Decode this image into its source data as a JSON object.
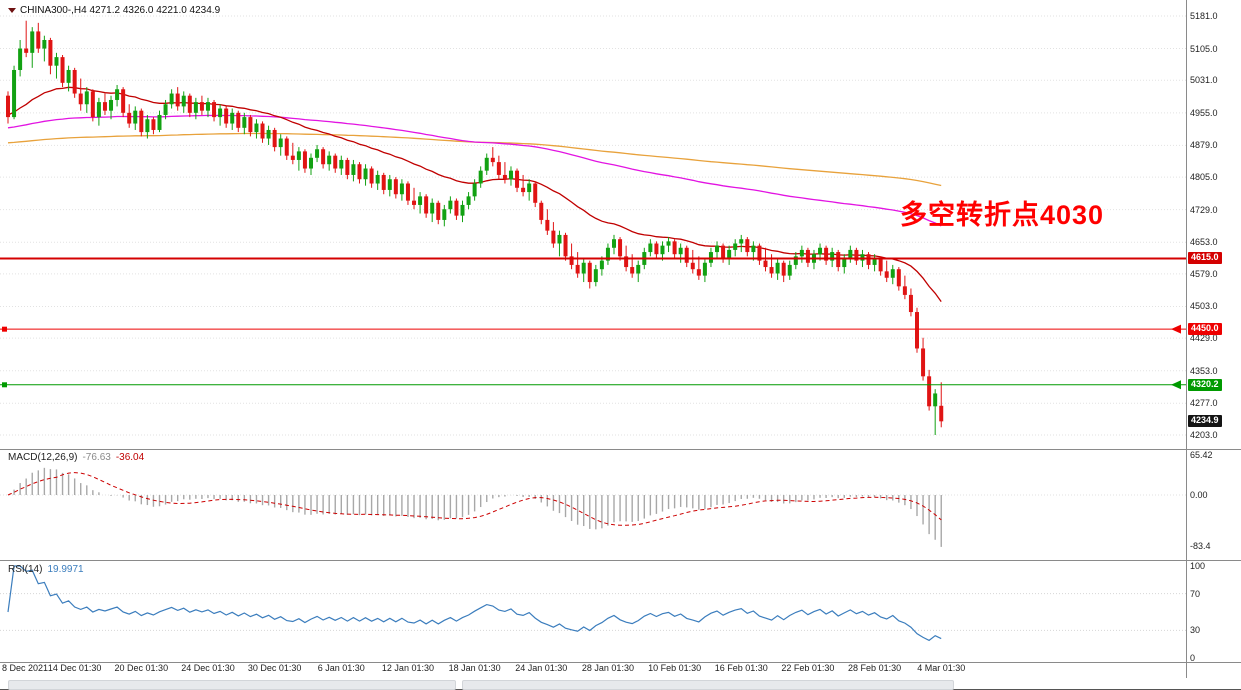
{
  "header": {
    "symbol_title": "CHINA300-,H4 4271.2 4326.0 4221.0 4234.9"
  },
  "annotation": {
    "text": "多空转折点4030",
    "color": "#ff0000"
  },
  "indicators": {
    "macd": {
      "label": "MACD(12,26,9)",
      "value_main": "-76.63",
      "value_signal": "-36.04",
      "axis_labels": [
        "65.42",
        "0.00",
        "-83.4"
      ],
      "axis_values": [
        65.42,
        0,
        -83.4
      ]
    },
    "rsi": {
      "label": "RSI(14)",
      "value": "19.9971",
      "axis_labels": [
        "100",
        "70",
        "30",
        "0"
      ],
      "axis_values": [
        100,
        70,
        30,
        0
      ]
    }
  },
  "price_axis": {
    "ticks": [
      5181.0,
      5105.0,
      5031.0,
      4955.0,
      4879.0,
      4805.0,
      4729.0,
      4653.0,
      4579.0,
      4503.0,
      4429.0,
      4353.0,
      4277.0,
      4203.0
    ],
    "tags": [
      {
        "label": "4615.0",
        "value": 4615.0,
        "bg": "#d40000"
      },
      {
        "label": "4450.0",
        "value": 4450.0,
        "bg": "#ee0000"
      },
      {
        "label": "4320.2",
        "value": 4320.2,
        "bg": "#009a00"
      },
      {
        "label": "4234.9",
        "value": 4234.9,
        "bg": "#141414"
      }
    ]
  },
  "levels": [
    {
      "value": 4615.0,
      "label": "4615.0",
      "color": "#d40000",
      "width": 2,
      "end_markers": false
    },
    {
      "value": 4450.0,
      "label": "4450.0",
      "color": "#ee0000",
      "width": 1,
      "end_markers": true
    },
    {
      "value": 4320.2,
      "label": "4320.2",
      "color": "#009a00",
      "width": 1,
      "end_markers": true
    }
  ],
  "time_axis": {
    "labels": [
      "8 Dec 2021",
      "14 Dec 01:30",
      "20 Dec 01:30",
      "24 Dec 01:30",
      "30 Dec 01:30",
      "6 Jan 01:30",
      "12 Jan 01:30",
      "18 Jan 01:30",
      "24 Jan 01:30",
      "28 Jan 01:30",
      "10 Feb 01:30",
      "16 Feb 01:30",
      "22 Feb 01:30",
      "28 Feb 01:30",
      "4 Mar 01:30"
    ],
    "candle_indices": [
      0,
      11,
      22,
      33,
      44,
      55,
      66,
      77,
      88,
      99,
      110,
      121,
      132,
      143,
      154
    ]
  },
  "colors": {
    "background": "#ffffff",
    "grid": "#e2e2e2",
    "candle_up": "#12a112",
    "candle_down": "#e01414",
    "macd_histogram": "#a8a8a8",
    "macd_signal": "#cc0000",
    "rsi_line": "#3b7dbd",
    "annotation": "#ff0000",
    "last_price_bg": "#141414"
  },
  "chart_data": {
    "type": "candlestick",
    "symbol": "CHINA300-",
    "timeframe": "H4",
    "title": "CHINA300-,H4",
    "last_ohlc": {
      "open": 4271.2,
      "high": 4326.0,
      "low": 4221.0,
      "close": 4234.9
    },
    "ylim": [
      4186,
      5210
    ],
    "moving_averages": [
      {
        "period": 340,
        "seed": 4885,
        "color": "#e8a23c",
        "name": "ma-slow-orange"
      },
      {
        "period": 140,
        "seed": 4920,
        "color": "#e214e2",
        "name": "ma-mid-magenta"
      },
      {
        "period": 30,
        "seed": 4950,
        "color": "#c00000",
        "name": "ma-fast-red"
      }
    ],
    "indicator_params": {
      "macd": {
        "fast": 12,
        "slow": 26,
        "signal": 9
      },
      "rsi": {
        "period": 14
      }
    },
    "ohlc": [
      [
        4995,
        5005,
        4930,
        4945
      ],
      [
        4945,
        5065,
        4940,
        5055
      ],
      [
        5055,
        5125,
        5040,
        5105
      ],
      [
        5105,
        5170,
        5085,
        5095
      ],
      [
        5095,
        5155,
        5060,
        5145
      ],
      [
        5145,
        5165,
        5095,
        5105
      ],
      [
        5105,
        5135,
        5075,
        5125
      ],
      [
        5125,
        5130,
        5045,
        5065
      ],
      [
        5065,
        5095,
        5035,
        5085
      ],
      [
        5085,
        5090,
        5015,
        5025
      ],
      [
        5025,
        5065,
        5005,
        5055
      ],
      [
        5055,
        5060,
        4990,
        5000
      ],
      [
        5000,
        5035,
        4960,
        4975
      ],
      [
        4975,
        5015,
        4955,
        5005
      ],
      [
        5005,
        5010,
        4935,
        4945
      ],
      [
        4945,
        4990,
        4925,
        4980
      ],
      [
        4980,
        5000,
        4950,
        4960
      ],
      [
        4960,
        4995,
        4940,
        4985
      ],
      [
        4985,
        5020,
        4970,
        5010
      ],
      [
        5010,
        5015,
        4945,
        4955
      ],
      [
        4955,
        4975,
        4920,
        4930
      ],
      [
        4930,
        4970,
        4915,
        4960
      ],
      [
        4960,
        4965,
        4900,
        4910
      ],
      [
        4910,
        4950,
        4895,
        4940
      ],
      [
        4940,
        4945,
        4905,
        4915
      ],
      [
        4915,
        4960,
        4910,
        4950
      ],
      [
        4950,
        4985,
        4940,
        4975
      ],
      [
        4975,
        5010,
        4965,
        5000
      ],
      [
        5000,
        5015,
        4960,
        4970
      ],
      [
        4970,
        5005,
        4955,
        4995
      ],
      [
        4995,
        5000,
        4945,
        4955
      ],
      [
        4955,
        4990,
        4940,
        4980
      ],
      [
        4980,
        4995,
        4950,
        4960
      ],
      [
        4960,
        4990,
        4945,
        4980
      ],
      [
        4980,
        4985,
        4935,
        4945
      ],
      [
        4945,
        4975,
        4925,
        4965
      ],
      [
        4965,
        4970,
        4920,
        4930
      ],
      [
        4930,
        4965,
        4915,
        4955
      ],
      [
        4955,
        4960,
        4910,
        4920
      ],
      [
        4920,
        4955,
        4905,
        4945
      ],
      [
        4945,
        4950,
        4900,
        4910
      ],
      [
        4910,
        4940,
        4895,
        4930
      ],
      [
        4930,
        4935,
        4885,
        4895
      ],
      [
        4895,
        4925,
        4880,
        4915
      ],
      [
        4915,
        4920,
        4865,
        4875
      ],
      [
        4875,
        4905,
        4855,
        4895
      ],
      [
        4895,
        4900,
        4845,
        4855
      ],
      [
        4855,
        4885,
        4835,
        4845
      ],
      [
        4845,
        4875,
        4820,
        4865
      ],
      [
        4865,
        4870,
        4815,
        4825
      ],
      [
        4825,
        4860,
        4810,
        4850
      ],
      [
        4850,
        4880,
        4840,
        4870
      ],
      [
        4870,
        4875,
        4825,
        4835
      ],
      [
        4835,
        4865,
        4820,
        4855
      ],
      [
        4855,
        4860,
        4815,
        4825
      ],
      [
        4825,
        4855,
        4810,
        4845
      ],
      [
        4845,
        4850,
        4800,
        4810
      ],
      [
        4810,
        4845,
        4795,
        4835
      ],
      [
        4835,
        4840,
        4790,
        4800
      ],
      [
        4800,
        4835,
        4785,
        4825
      ],
      [
        4825,
        4830,
        4780,
        4790
      ],
      [
        4790,
        4820,
        4775,
        4810
      ],
      [
        4810,
        4815,
        4765,
        4775
      ],
      [
        4775,
        4810,
        4760,
        4800
      ],
      [
        4800,
        4805,
        4755,
        4765
      ],
      [
        4765,
        4800,
        4750,
        4790
      ],
      [
        4790,
        4795,
        4740,
        4750
      ],
      [
        4750,
        4780,
        4730,
        4740
      ],
      [
        4740,
        4770,
        4720,
        4760
      ],
      [
        4760,
        4765,
        4710,
        4720
      ],
      [
        4720,
        4755,
        4700,
        4745
      ],
      [
        4745,
        4750,
        4695,
        4705
      ],
      [
        4705,
        4740,
        4690,
        4730
      ],
      [
        4730,
        4760,
        4720,
        4750
      ],
      [
        4750,
        4755,
        4705,
        4715
      ],
      [
        4715,
        4750,
        4700,
        4740
      ],
      [
        4740,
        4770,
        4730,
        4760
      ],
      [
        4760,
        4800,
        4750,
        4790
      ],
      [
        4790,
        4830,
        4780,
        4820
      ],
      [
        4820,
        4860,
        4810,
        4850
      ],
      [
        4850,
        4875,
        4830,
        4840
      ],
      [
        4840,
        4855,
        4800,
        4810
      ],
      [
        4810,
        4840,
        4790,
        4800
      ],
      [
        4800,
        4830,
        4785,
        4820
      ],
      [
        4820,
        4825,
        4770,
        4780
      ],
      [
        4780,
        4810,
        4760,
        4770
      ],
      [
        4770,
        4800,
        4750,
        4790
      ],
      [
        4790,
        4795,
        4735,
        4745
      ],
      [
        4745,
        4750,
        4695,
        4705
      ],
      [
        4705,
        4730,
        4670,
        4680
      ],
      [
        4680,
        4700,
        4640,
        4650
      ],
      [
        4650,
        4680,
        4620,
        4670
      ],
      [
        4670,
        4675,
        4610,
        4620
      ],
      [
        4620,
        4650,
        4590,
        4600
      ],
      [
        4600,
        4630,
        4570,
        4580
      ],
      [
        4580,
        4615,
        4560,
        4605
      ],
      [
        4605,
        4610,
        4545,
        4560
      ],
      [
        4560,
        4600,
        4550,
        4590
      ],
      [
        4590,
        4620,
        4575,
        4610
      ],
      [
        4610,
        4650,
        4600,
        4640
      ],
      [
        4640,
        4670,
        4625,
        4660
      ],
      [
        4660,
        4665,
        4610,
        4620
      ],
      [
        4620,
        4645,
        4585,
        4595
      ],
      [
        4595,
        4625,
        4570,
        4580
      ],
      [
        4580,
        4610,
        4560,
        4600
      ],
      [
        4600,
        4640,
        4590,
        4630
      ],
      [
        4630,
        4660,
        4620,
        4650
      ],
      [
        4650,
        4655,
        4615,
        4625
      ],
      [
        4625,
        4655,
        4610,
        4645
      ],
      [
        4645,
        4665,
        4630,
        4655
      ],
      [
        4655,
        4660,
        4615,
        4625
      ],
      [
        4625,
        4650,
        4605,
        4640
      ],
      [
        4640,
        4645,
        4595,
        4605
      ],
      [
        4605,
        4635,
        4580,
        4590
      ],
      [
        4590,
        4620,
        4565,
        4575
      ],
      [
        4575,
        4615,
        4560,
        4605
      ],
      [
        4605,
        4640,
        4595,
        4630
      ],
      [
        4630,
        4655,
        4615,
        4645
      ],
      [
        4645,
        4650,
        4605,
        4615
      ],
      [
        4615,
        4645,
        4600,
        4635
      ],
      [
        4635,
        4660,
        4620,
        4650
      ],
      [
        4650,
        4670,
        4630,
        4660
      ],
      [
        4660,
        4665,
        4620,
        4630
      ],
      [
        4630,
        4655,
        4610,
        4645
      ],
      [
        4645,
        4650,
        4600,
        4610
      ],
      [
        4610,
        4640,
        4585,
        4595
      ],
      [
        4595,
        4625,
        4570,
        4580
      ],
      [
        4580,
        4615,
        4565,
        4605
      ],
      [
        4605,
        4610,
        4560,
        4575
      ],
      [
        4575,
        4610,
        4565,
        4600
      ],
      [
        4600,
        4630,
        4590,
        4620
      ],
      [
        4620,
        4645,
        4605,
        4635
      ],
      [
        4635,
        4640,
        4595,
        4605
      ],
      [
        4605,
        4635,
        4590,
        4625
      ],
      [
        4625,
        4650,
        4610,
        4640
      ],
      [
        4640,
        4645,
        4600,
        4610
      ],
      [
        4610,
        4640,
        4595,
        4630
      ],
      [
        4630,
        4635,
        4585,
        4595
      ],
      [
        4595,
        4625,
        4580,
        4615
      ],
      [
        4615,
        4645,
        4605,
        4635
      ],
      [
        4635,
        4640,
        4600,
        4610
      ],
      [
        4610,
        4635,
        4595,
        4625
      ],
      [
        4625,
        4630,
        4590,
        4600
      ],
      [
        4600,
        4625,
        4585,
        4615
      ],
      [
        4615,
        4620,
        4575,
        4585
      ],
      [
        4585,
        4610,
        4560,
        4570
      ],
      [
        4570,
        4600,
        4555,
        4590
      ],
      [
        4590,
        4595,
        4540,
        4550
      ],
      [
        4550,
        4575,
        4520,
        4530
      ],
      [
        4530,
        4545,
        4480,
        4490
      ],
      [
        4490,
        4500,
        4395,
        4405
      ],
      [
        4405,
        4430,
        4330,
        4340
      ],
      [
        4340,
        4355,
        4260,
        4270
      ],
      [
        4270,
        4310,
        4203,
        4300
      ],
      [
        4271.2,
        4326,
        4221,
        4234.9
      ]
    ]
  }
}
